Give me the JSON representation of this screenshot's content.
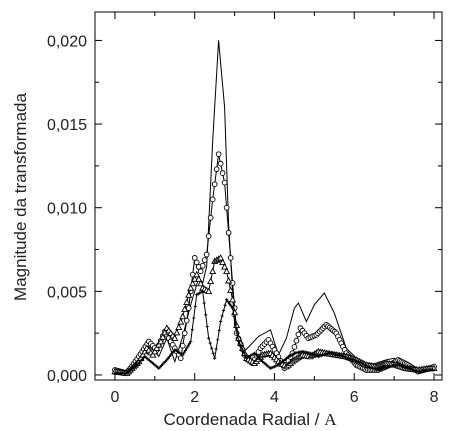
{
  "chart_data": {
    "type": "line",
    "title": "",
    "xlabel": "Coordenada Radial / ",
    "xlabel_unit": "A",
    "ylabel": "Magnitude da transformada",
    "xlim": [
      -0.5,
      8.2
    ],
    "ylim": [
      -0.0003,
      0.0217
    ],
    "x_ticks": [
      0,
      2,
      4,
      6,
      8
    ],
    "x_tick_labels": [
      "0",
      "2",
      "4",
      "6",
      "8"
    ],
    "y_ticks": [
      0.0,
      0.005,
      0.01,
      0.015,
      0.02
    ],
    "y_tick_labels": [
      "0,000",
      "0,005",
      "0,010",
      "0,015",
      "0,020"
    ],
    "grid": false,
    "legend": "none",
    "series": [
      {
        "style": "line",
        "points": [
          [
            0.0,
            0.0002
          ],
          [
            0.2,
            0.0001
          ],
          [
            0.4,
            0.0006
          ],
          [
            0.6,
            0.0013
          ],
          [
            0.8,
            0.0018
          ],
          [
            1.0,
            0.0014
          ],
          [
            1.1,
            0.0011
          ],
          [
            1.3,
            0.0022
          ],
          [
            1.5,
            0.0008
          ],
          [
            1.7,
            0.0023
          ],
          [
            1.9,
            0.0042
          ],
          [
            2.1,
            0.0058
          ],
          [
            2.2,
            0.0055
          ],
          [
            2.3,
            0.0065
          ],
          [
            2.45,
            0.014
          ],
          [
            2.6,
            0.02
          ],
          [
            2.75,
            0.016
          ],
          [
            2.85,
            0.009
          ],
          [
            3.0,
            0.003
          ],
          [
            3.2,
            0.0013
          ],
          [
            3.4,
            0.0018
          ],
          [
            3.6,
            0.0023
          ],
          [
            3.9,
            0.0027
          ],
          [
            4.1,
            0.0012
          ],
          [
            4.3,
            0.0022
          ],
          [
            4.5,
            0.004
          ],
          [
            4.6,
            0.0043
          ],
          [
            4.8,
            0.0032
          ],
          [
            5.0,
            0.0042
          ],
          [
            5.25,
            0.0049
          ],
          [
            5.5,
            0.0037
          ],
          [
            5.8,
            0.0016
          ],
          [
            6.1,
            0.0009
          ],
          [
            6.4,
            0.0006
          ],
          [
            6.8,
            0.0009
          ],
          [
            7.0,
            0.001
          ],
          [
            7.2,
            0.0007
          ],
          [
            7.5,
            0.0003
          ],
          [
            7.8,
            0.0004
          ],
          [
            8.0,
            0.0005
          ]
        ]
      },
      {
        "style": "circle",
        "points": [
          [
            0.0,
            0.0003
          ],
          [
            0.3,
            0.0001
          ],
          [
            0.6,
            0.0011
          ],
          [
            0.85,
            0.002
          ],
          [
            1.05,
            0.0015
          ],
          [
            1.25,
            0.0026
          ],
          [
            1.45,
            0.0018
          ],
          [
            1.65,
            0.001
          ],
          [
            1.85,
            0.004
          ],
          [
            2.0,
            0.007
          ],
          [
            2.15,
            0.0062
          ],
          [
            2.3,
            0.0072
          ],
          [
            2.45,
            0.0105
          ],
          [
            2.6,
            0.0132
          ],
          [
            2.75,
            0.0115
          ],
          [
            2.9,
            0.007
          ],
          [
            3.05,
            0.0025
          ],
          [
            3.25,
            0.0012
          ],
          [
            3.45,
            0.0007
          ],
          [
            3.65,
            0.0016
          ],
          [
            3.85,
            0.0021
          ],
          [
            4.05,
            0.0013
          ],
          [
            4.25,
            0.0004
          ],
          [
            4.45,
            0.0013
          ],
          [
            4.65,
            0.0028
          ],
          [
            4.85,
            0.0022
          ],
          [
            5.05,
            0.0024
          ],
          [
            5.3,
            0.003
          ],
          [
            5.55,
            0.0025
          ],
          [
            5.8,
            0.0013
          ],
          [
            6.05,
            0.0006
          ],
          [
            6.3,
            0.0003
          ],
          [
            6.6,
            0.0003
          ],
          [
            6.9,
            0.0006
          ],
          [
            7.1,
            0.0009
          ],
          [
            7.35,
            0.0006
          ],
          [
            7.6,
            0.0002
          ],
          [
            7.9,
            0.0004
          ],
          [
            8.0,
            0.0005
          ]
        ]
      },
      {
        "style": "triangle",
        "points": [
          [
            0.0,
            0.0002
          ],
          [
            0.3,
            0.0001
          ],
          [
            0.6,
            0.0008
          ],
          [
            0.8,
            0.0016
          ],
          [
            0.95,
            0.0012
          ],
          [
            1.15,
            0.002
          ],
          [
            1.3,
            0.0028
          ],
          [
            1.5,
            0.0022
          ],
          [
            1.7,
            0.0035
          ],
          [
            1.9,
            0.0052
          ],
          [
            2.05,
            0.006
          ],
          [
            2.2,
            0.0052
          ],
          [
            2.35,
            0.005
          ],
          [
            2.5,
            0.0068
          ],
          [
            2.65,
            0.007
          ],
          [
            2.8,
            0.0062
          ],
          [
            2.95,
            0.0045
          ],
          [
            3.1,
            0.0022
          ],
          [
            3.3,
            0.001
          ],
          [
            3.5,
            0.0007
          ],
          [
            3.7,
            0.0012
          ],
          [
            3.9,
            0.0013
          ],
          [
            4.1,
            0.0008
          ],
          [
            4.3,
            0.0005
          ],
          [
            4.5,
            0.0009
          ],
          [
            4.7,
            0.0012
          ],
          [
            4.9,
            0.0011
          ],
          [
            5.1,
            0.0014
          ],
          [
            5.3,
            0.0013
          ],
          [
            5.55,
            0.0012
          ],
          [
            5.8,
            0.0011
          ],
          [
            6.05,
            0.0009
          ],
          [
            6.3,
            0.0006
          ],
          [
            6.55,
            0.0005
          ],
          [
            6.8,
            0.0007
          ],
          [
            7.05,
            0.0006
          ],
          [
            7.3,
            0.0004
          ],
          [
            7.6,
            0.0003
          ],
          [
            7.9,
            0.0004
          ],
          [
            8.0,
            0.0004
          ]
        ]
      },
      {
        "style": "plus",
        "points": [
          [
            0.0,
            0.0001
          ],
          [
            0.3,
            0.0001
          ],
          [
            0.55,
            0.0006
          ],
          [
            0.75,
            0.0011
          ],
          [
            0.9,
            0.0008
          ],
          [
            1.1,
            0.0004
          ],
          [
            1.3,
            0.0009
          ],
          [
            1.5,
            0.0015
          ],
          [
            1.7,
            0.0012
          ],
          [
            1.9,
            0.002
          ],
          [
            2.05,
            0.0048
          ],
          [
            2.2,
            0.005
          ],
          [
            2.35,
            0.0022
          ],
          [
            2.5,
            0.001
          ],
          [
            2.65,
            0.0032
          ],
          [
            2.8,
            0.0045
          ],
          [
            2.95,
            0.004
          ],
          [
            3.1,
            0.002
          ],
          [
            3.3,
            0.001
          ],
          [
            3.5,
            0.0013
          ],
          [
            3.7,
            0.0008
          ],
          [
            3.9,
            0.0004
          ],
          [
            4.1,
            0.0006
          ],
          [
            4.3,
            0.001
          ],
          [
            4.5,
            0.0013
          ],
          [
            4.7,
            0.0014
          ],
          [
            4.9,
            0.0013
          ],
          [
            5.1,
            0.0011
          ],
          [
            5.35,
            0.0013
          ],
          [
            5.6,
            0.0012
          ],
          [
            5.85,
            0.001
          ],
          [
            6.1,
            0.0008
          ],
          [
            6.35,
            0.0005
          ],
          [
            6.6,
            0.0003
          ],
          [
            6.85,
            0.0005
          ],
          [
            7.1,
            0.0006
          ],
          [
            7.35,
            0.0004
          ],
          [
            7.6,
            0.0002
          ],
          [
            7.85,
            0.0003
          ],
          [
            8.0,
            0.0003
          ]
        ]
      }
    ]
  }
}
